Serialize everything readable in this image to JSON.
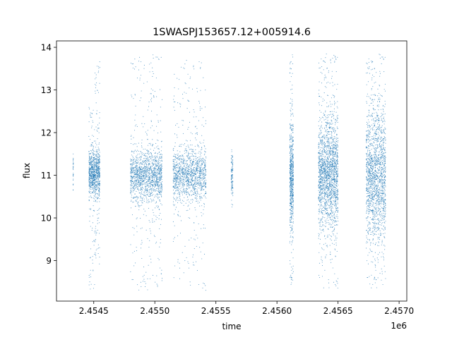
{
  "chart_data": {
    "type": "scatter",
    "title": "1SWASPJ153657.12+005914.6",
    "xlabel": "time",
    "ylabel": "flux",
    "x_offset_label": "1e6",
    "xlim": [
      2454195,
      2457063
    ],
    "ylim": [
      8.05,
      14.15
    ],
    "x_ticks": [
      2454500,
      2455000,
      2455500,
      2456000,
      2456500,
      2457000
    ],
    "x_tick_labels": [
      "2.4545",
      "2.4550",
      "2.4555",
      "2.4560",
      "2.4565",
      "2.4570"
    ],
    "y_ticks": [
      9,
      10,
      11,
      12,
      13,
      14
    ],
    "y_tick_labels": [
      "9",
      "10",
      "11",
      "12",
      "13",
      "14"
    ],
    "grid": false,
    "marker_color": "#1f77b4",
    "series": [
      {
        "observing_seasons": [
          {
            "x_range": [
              2454330,
              2454333
            ],
            "y_center": 11.05,
            "core_spread": 0.25,
            "y_range": [
              10.55,
              11.5
            ],
            "count": 30
          },
          {
            "x_range": [
              2454460,
              2454510
            ],
            "y_center": 11.05,
            "core_spread": 0.25,
            "y_range": [
              8.3,
              12.6
            ],
            "count": 520
          },
          {
            "x_range": [
              2454510,
              2454550
            ],
            "y_center": 11.05,
            "core_spread": 0.3,
            "y_range": [
              8.9,
              13.85
            ],
            "count": 420
          },
          {
            "x_range": [
              2454800,
              2455060
            ],
            "y_center": 11.0,
            "core_spread": 0.3,
            "y_range": [
              8.3,
              13.85
            ],
            "count": 1500
          },
          {
            "x_range": [
              2455150,
              2455420
            ],
            "y_center": 11.0,
            "core_spread": 0.3,
            "y_range": [
              8.3,
              13.7
            ],
            "count": 1350
          },
          {
            "x_range": [
              2455625,
              2455640
            ],
            "y_center": 11.0,
            "core_spread": 0.25,
            "y_range": [
              10.2,
              11.65
            ],
            "count": 110
          },
          {
            "x_range": [
              2456105,
              2456135
            ],
            "y_center": 11.0,
            "core_spread": 0.6,
            "y_range": [
              8.35,
              13.85
            ],
            "count": 650
          },
          {
            "x_range": [
              2456340,
              2456500
            ],
            "y_center": 11.0,
            "core_spread": 0.6,
            "y_range": [
              8.35,
              13.85
            ],
            "count": 1900
          },
          {
            "x_range": [
              2456730,
              2456890
            ],
            "y_center": 11.0,
            "core_spread": 0.75,
            "y_range": [
              8.35,
              13.85
            ],
            "count": 1700
          }
        ]
      }
    ]
  }
}
